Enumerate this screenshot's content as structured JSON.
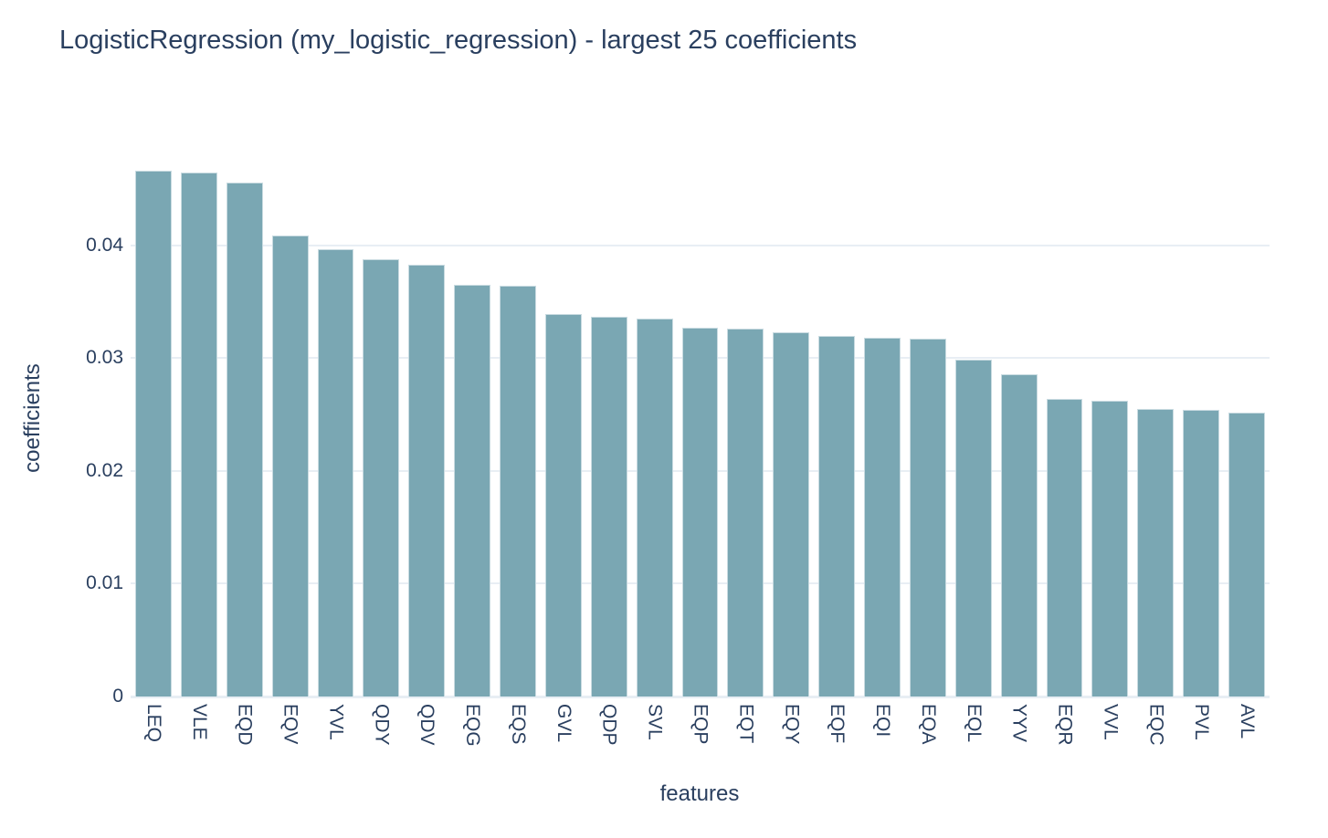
{
  "chart_data": {
    "type": "bar",
    "title": "LogisticRegression (my_logistic_regression) - largest 25 coefficients",
    "xlabel": "features",
    "ylabel": "coefficients",
    "categories": [
      "LEQ",
      "VLE",
      "EQD",
      "EQV",
      "YVL",
      "QDY",
      "QDV",
      "EQG",
      "EQS",
      "GVL",
      "QDP",
      "SVL",
      "EQP",
      "EQT",
      "EQY",
      "EQF",
      "EQI",
      "EQA",
      "EQL",
      "YYV",
      "EQR",
      "VVL",
      "EQC",
      "PVL",
      "AVL"
    ],
    "values": [
      0.0466,
      0.0465,
      0.0456,
      0.0409,
      0.0397,
      0.0388,
      0.0383,
      0.0365,
      0.0364,
      0.0339,
      0.0337,
      0.0335,
      0.0327,
      0.0326,
      0.0323,
      0.032,
      0.0318,
      0.0317,
      0.0299,
      0.0286,
      0.0264,
      0.0262,
      0.0255,
      0.0254,
      0.0252
    ],
    "ylim": [
      0,
      0.0493
    ],
    "yticks": [
      0,
      0.01,
      0.02,
      0.03,
      0.04
    ],
    "ytick_labels": [
      "0",
      "0.01",
      "0.02",
      "0.03",
      "0.04"
    ],
    "grid": true,
    "legend": "none",
    "bar_color": "#7aa7b3",
    "bar_edge_color": "#c9dbe1",
    "text_color": "#2a3f5f",
    "grid_color": "#e8eef4",
    "background_color": "#ffffff"
  }
}
